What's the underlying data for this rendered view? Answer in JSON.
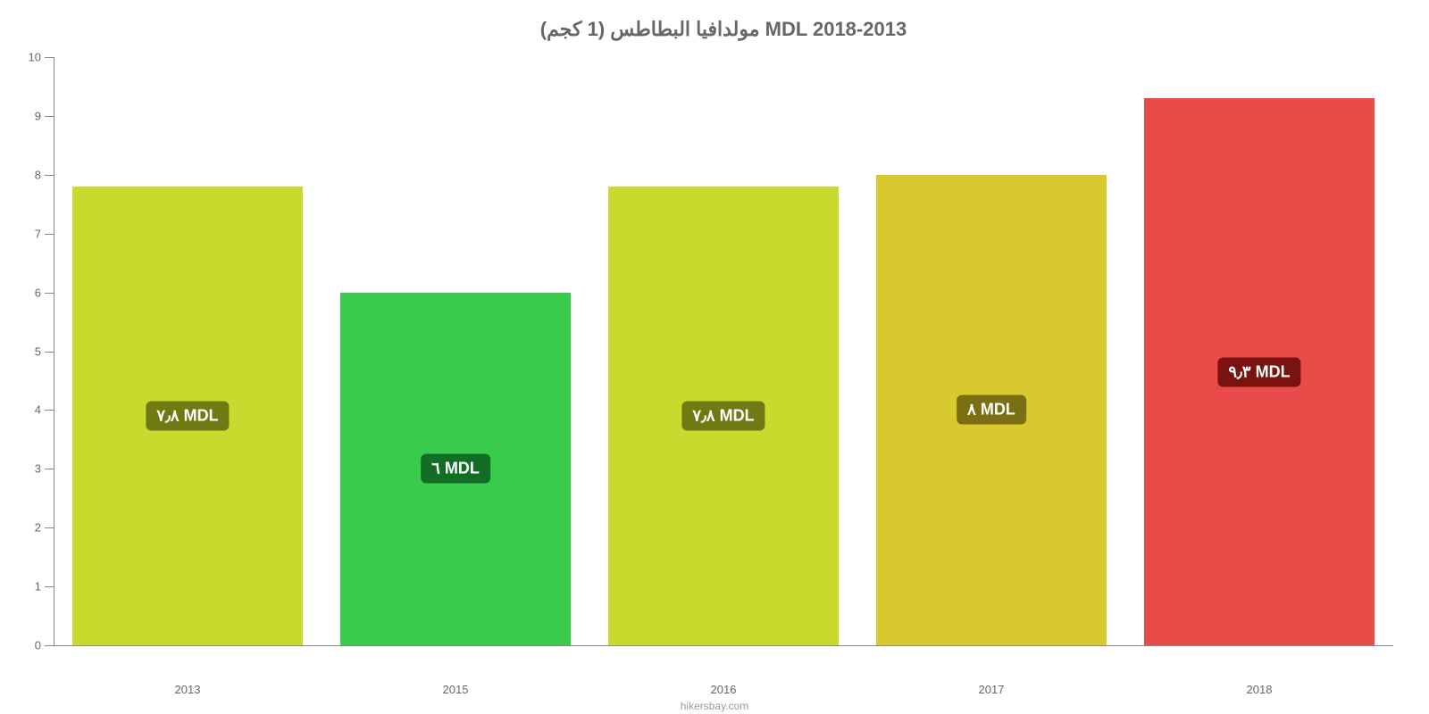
{
  "chart": {
    "type": "bar",
    "title": "مولدافيا البطاطس (1 كجم) MDL 2018-2013",
    "title_fontsize": 22,
    "title_color": "#666666",
    "background_color": "#ffffff",
    "axis_color": "#888888",
    "tick_label_color": "#666666",
    "tick_label_fontsize": 13,
    "ylim_min": 0,
    "ylim_max": 10,
    "yticks": [
      "0",
      "1",
      "2",
      "3",
      "4",
      "5",
      "6",
      "7",
      "8",
      "9",
      "10"
    ],
    "bar_width_pct": 86,
    "categories": [
      "2013",
      "2015",
      "2016",
      "2017",
      "2018"
    ],
    "values": [
      7.8,
      6.0,
      7.8,
      8.0,
      9.3
    ],
    "value_labels": [
      "٧٫٨ MDL",
      "٦ MDL",
      "٧٫٨ MDL",
      "٨ MDL",
      "٩٫٣ MDL"
    ],
    "bar_colors": [
      "#c9d92e",
      "#39cb4b",
      "#c9d92e",
      "#d8ca2e",
      "#e84b48"
    ],
    "badge_colors": [
      "#6f7a12",
      "#126e24",
      "#6f7a12",
      "#7a6f12",
      "#7a1210"
    ],
    "badge_text_color": "#ffffff",
    "badge_fontsize": 18,
    "footer": "hikersbay.com",
    "footer_color": "#999999",
    "footer_fontsize": 12
  }
}
